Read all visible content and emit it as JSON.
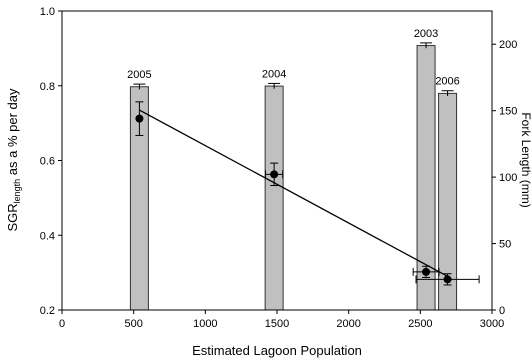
{
  "chart_data": {
    "type": "bar",
    "xlabel": "Estimated Lagoon Population",
    "ylabel_main": "SGR",
    "ylabel_sub": "length",
    "ylabel_rest": " as a % per day",
    "y2label": "Fork Length (mm)",
    "xlim": [
      0,
      3000
    ],
    "ylim": [
      0.2,
      1.0
    ],
    "y2lim": [
      0,
      225
    ],
    "x_ticks": [
      0,
      500,
      1000,
      1500,
      2000,
      2500,
      3000
    ],
    "x_tick_labels": [
      "0",
      "500",
      "1000",
      "1500",
      "2000",
      "2500",
      "3000"
    ],
    "y_ticks": [
      0.2,
      0.4,
      0.6,
      0.8,
      1.0
    ],
    "y_tick_labels": [
      "0.2",
      "0.4",
      "0.6",
      "0.8",
      "1.0"
    ],
    "y2_ticks": [
      0,
      50,
      100,
      150,
      200
    ],
    "y2_tick_labels": [
      "0",
      "50",
      "100",
      "150",
      "200"
    ],
    "bars": [
      {
        "year": "2005",
        "x": 540,
        "fork_length": 168,
        "err": 2
      },
      {
        "year": "2004",
        "x": 1480,
        "fork_length": 168.5,
        "err": 2
      },
      {
        "year": "2003",
        "x": 2540,
        "fork_length": 199,
        "err": 2
      },
      {
        "year": "2006",
        "x": 2690,
        "fork_length": 163,
        "err": 2
      }
    ],
    "points": [
      {
        "x": 540,
        "y": 0.712,
        "xerr": 0,
        "yerr": 0.045
      },
      {
        "x": 1480,
        "y": 0.563,
        "xerr": 60,
        "yerr": 0.03
      },
      {
        "x": 2540,
        "y": 0.302,
        "xerr": 90,
        "yerr": 0.015
      },
      {
        "x": 2690,
        "y": 0.282,
        "xerr": 220,
        "yerr": 0.015
      }
    ],
    "fit_line": {
      "x": [
        540,
        2690
      ],
      "y": [
        0.735,
        0.29
      ]
    },
    "colors": {
      "bar_fill": "#c0c0c0",
      "bar_stroke": "#333333",
      "marker": "#000000"
    }
  }
}
